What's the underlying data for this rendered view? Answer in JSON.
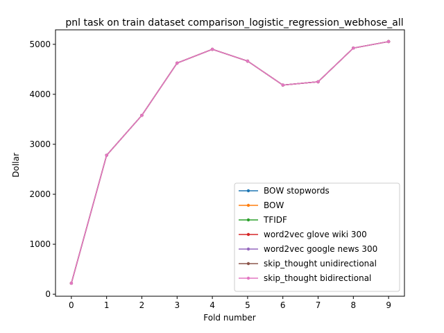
{
  "chart_data": {
    "type": "line",
    "title": "pnl task on train dataset comparison_logistic_regression_webhose_all",
    "xlabel": "Fold number",
    "ylabel": "Dollar",
    "x": [
      0,
      1,
      2,
      3,
      4,
      5,
      6,
      7,
      8,
      9
    ],
    "xticks": [
      0,
      1,
      2,
      3,
      4,
      5,
      6,
      7,
      8,
      9
    ],
    "yticks": [
      0,
      1000,
      2000,
      3000,
      4000,
      5000
    ],
    "xlim": [
      -0.45,
      9.45
    ],
    "ylim": [
      -40,
      5290
    ],
    "grid": false,
    "legend_position": "lower-right",
    "series": [
      {
        "name": "BOW stopwords",
        "color": "#1f77b4",
        "values": [
          220,
          2780,
          3580,
          4625,
          4900,
          4665,
          4185,
          4250,
          4925,
          5055
        ]
      },
      {
        "name": "BOW",
        "color": "#ff7f0e",
        "values": [
          220,
          2780,
          3580,
          4625,
          4900,
          4665,
          4185,
          4250,
          4925,
          5055
        ]
      },
      {
        "name": "TFIDF",
        "color": "#2ca02c",
        "values": [
          220,
          2780,
          3580,
          4625,
          4900,
          4665,
          4185,
          4250,
          4925,
          5055
        ]
      },
      {
        "name": "word2vec glove wiki 300",
        "color": "#d62728",
        "values": [
          220,
          2780,
          3580,
          4625,
          4900,
          4665,
          4185,
          4250,
          4925,
          5055
        ]
      },
      {
        "name": "word2vec google news 300",
        "color": "#9467bd",
        "values": [
          220,
          2780,
          3580,
          4625,
          4900,
          4665,
          4185,
          4250,
          4925,
          5055
        ]
      },
      {
        "name": "skip_thought unidirectional",
        "color": "#8c564b",
        "values": [
          220,
          2780,
          3580,
          4625,
          4900,
          4665,
          4185,
          4250,
          4925,
          5055
        ]
      },
      {
        "name": "skip_thought bidirectional",
        "color": "#e377c2",
        "values": [
          220,
          2780,
          3580,
          4625,
          4900,
          4665,
          4185,
          4250,
          4925,
          5055
        ]
      }
    ]
  }
}
